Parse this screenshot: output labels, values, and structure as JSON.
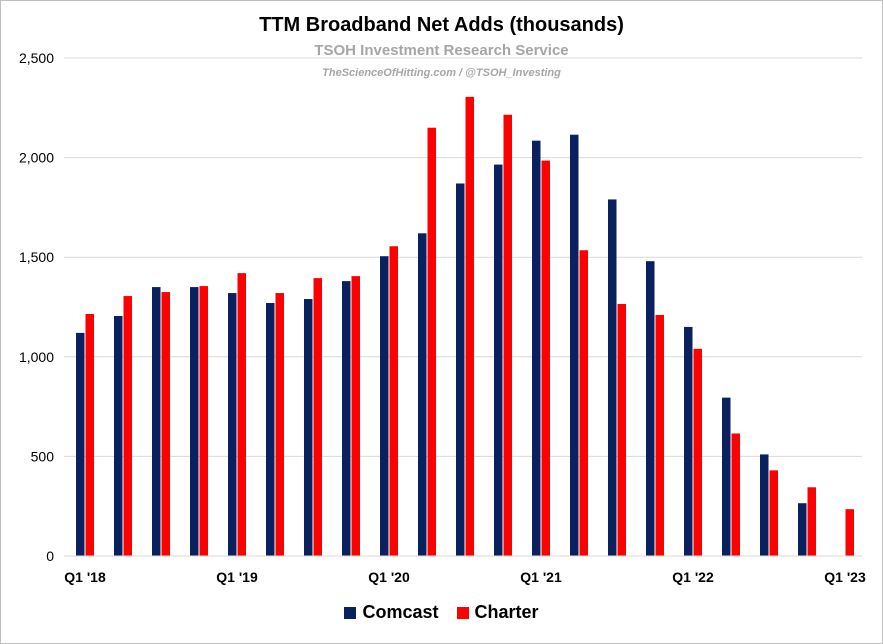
{
  "chart_data": {
    "type": "bar",
    "title": "TTM Broadband Net Adds (thousands)",
    "subtitle": "TSOH Investment Research Service",
    "credit": "TheScienceOfHitting.com / @TSOH_Investing",
    "categories": [
      "Q1 '18",
      "Q2 '18",
      "Q3 '18",
      "Q4 '18",
      "Q1 '19",
      "Q2 '19",
      "Q3 '19",
      "Q4 '19",
      "Q1 '20",
      "Q2 '20",
      "Q3 '20",
      "Q4 '20",
      "Q1 '21",
      "Q2 '21",
      "Q3 '21",
      "Q4 '21",
      "Q1 '22",
      "Q2 '22",
      "Q3 '22",
      "Q4 '22",
      "Q1 '23"
    ],
    "x_tick_labels": [
      "Q1 '18",
      "",
      "",
      "",
      "Q1 '19",
      "",
      "",
      "",
      "Q1 '20",
      "",
      "",
      "",
      "Q1 '21",
      "",
      "",
      "",
      "Q1 '22",
      "",
      "",
      "",
      "Q1 '23"
    ],
    "series": [
      {
        "name": "Comcast",
        "color": "#0a2160",
        "values": [
          1120,
          1205,
          1350,
          1350,
          1320,
          1270,
          1290,
          1380,
          1505,
          1620,
          1870,
          1965,
          2085,
          2115,
          1790,
          1480,
          1150,
          795,
          510,
          265,
          0
        ]
      },
      {
        "name": "Charter",
        "color": "#ff0000",
        "values": [
          1215,
          1305,
          1325,
          1355,
          1420,
          1320,
          1395,
          1405,
          1555,
          2150,
          2305,
          2215,
          1985,
          1535,
          1265,
          1210,
          1040,
          615,
          430,
          345,
          235
        ]
      }
    ],
    "ylim": [
      0,
      2500
    ],
    "yticks": [
      0,
      500,
      1000,
      1500,
      2000,
      2500
    ],
    "ytick_labels": [
      "0",
      "500",
      "1,000",
      "1,500",
      "2,000",
      "2,500"
    ],
    "grid": true,
    "legend_position": "bottom"
  }
}
